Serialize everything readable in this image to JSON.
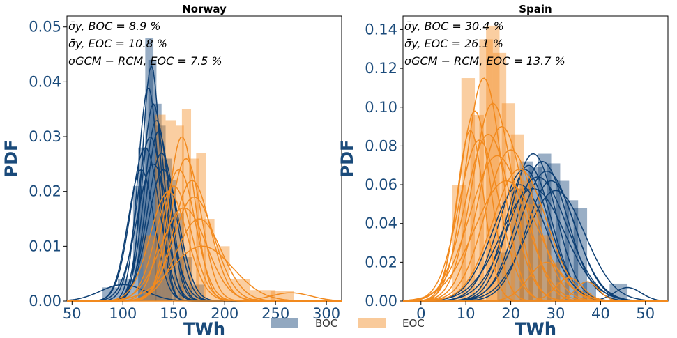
{
  "colors": {
    "boc": "#0d3f74",
    "eoc": "#f28a1e",
    "axis_text": "#1a4a7a"
  },
  "legend": {
    "items": [
      {
        "label": "BOC",
        "color": "#0d3f74"
      },
      {
        "label": "EOC",
        "color": "#f28a1e"
      }
    ]
  },
  "chart_data": [
    {
      "type": "histogram",
      "title": "Norway",
      "xlabel": "TWh",
      "ylabel": "PDF",
      "xlim": [
        45,
        315
      ],
      "ylim": [
        0,
        0.052
      ],
      "xticks": [
        50,
        100,
        150,
        200,
        250,
        300
      ],
      "yticks": [
        0.0,
        0.01,
        0.02,
        0.03,
        0.04,
        0.05
      ],
      "ytick_labels": [
        "0.00",
        "0.01",
        "0.02",
        "0.03",
        "0.04",
        "0.05"
      ],
      "annotations": [
        "σ̄y, BOC = 8.9 %",
        "σ̄y, EOC = 10.8 %",
        "σGCM − RCM, EOC = 7.5 %"
      ],
      "series": [
        {
          "name": "BOC",
          "bars": [
            [
              80,
              95,
              0.0025
            ],
            [
              95,
              110,
              0.004
            ],
            [
              110,
              122,
              0.021
            ],
            [
              115,
              125,
              0.028
            ],
            [
              122,
              130,
              0.048
            ],
            [
              125,
              133,
              0.044
            ],
            [
              130,
              138,
              0.036
            ],
            [
              132,
              142,
              0.032
            ],
            [
              138,
              148,
              0.026
            ],
            [
              142,
              152,
              0.022
            ],
            [
              150,
              160,
              0.016
            ],
            [
              155,
              168,
              0.008
            ],
            [
              165,
              180,
              0.003
            ]
          ],
          "curves": [
            {
              "mean": 128,
              "sd": 9,
              "peak": 0.043
            },
            {
              "mean": 125,
              "sd": 10,
              "peak": 0.039
            },
            {
              "mean": 130,
              "sd": 11,
              "peak": 0.036
            },
            {
              "mean": 133,
              "sd": 12,
              "peak": 0.033
            },
            {
              "mean": 127,
              "sd": 13,
              "peak": 0.03
            },
            {
              "mean": 135,
              "sd": 12,
              "peak": 0.031
            },
            {
              "mean": 122,
              "sd": 14,
              "peak": 0.028
            },
            {
              "mean": 138,
              "sd": 14,
              "peak": 0.027
            },
            {
              "mean": 130,
              "sd": 16,
              "peak": 0.025
            },
            {
              "mean": 118,
              "sd": 13,
              "peak": 0.024
            },
            {
              "mean": 140,
              "sd": 15,
              "peak": 0.024
            },
            {
              "mean": 100,
              "sd": 22,
              "peak": 0.003
            }
          ]
        },
        {
          "name": "EOC",
          "bars": [
            [
              120,
              132,
              0.012
            ],
            [
              132,
              142,
              0.034
            ],
            [
              142,
              152,
              0.033
            ],
            [
              152,
              160,
              0.032
            ],
            [
              158,
              167,
              0.035
            ],
            [
              165,
              175,
              0.026
            ],
            [
              172,
              182,
              0.027
            ],
            [
              180,
              190,
              0.015
            ],
            [
              190,
              205,
              0.01
            ],
            [
              205,
              225,
              0.004
            ],
            [
              225,
              250,
              0.002
            ],
            [
              245,
              268,
              0.0018
            ]
          ],
          "curves": [
            {
              "mean": 158,
              "sd": 13,
              "peak": 0.03
            },
            {
              "mean": 162,
              "sd": 15,
              "peak": 0.026
            },
            {
              "mean": 155,
              "sd": 16,
              "peak": 0.024
            },
            {
              "mean": 168,
              "sd": 18,
              "peak": 0.022
            },
            {
              "mean": 150,
              "sd": 17,
              "peak": 0.021
            },
            {
              "mean": 170,
              "sd": 20,
              "peak": 0.019
            },
            {
              "mean": 160,
              "sd": 22,
              "peak": 0.017
            },
            {
              "mean": 175,
              "sd": 22,
              "peak": 0.015
            },
            {
              "mean": 145,
              "sd": 18,
              "peak": 0.02
            },
            {
              "mean": 178,
              "sd": 30,
              "peak": 0.01
            },
            {
              "mean": 265,
              "sd": 20,
              "peak": 0.0015
            }
          ]
        }
      ]
    },
    {
      "type": "histogram",
      "title": "Spain",
      "xlabel": "TWh",
      "ylabel": "PDF",
      "xlim": [
        -4,
        55
      ],
      "ylim": [
        0,
        0.147
      ],
      "xticks": [
        0,
        10,
        20,
        30,
        40,
        50
      ],
      "yticks": [
        0.0,
        0.02,
        0.04,
        0.06,
        0.08,
        0.1,
        0.12,
        0.14
      ],
      "ytick_labels": [
        "0.00",
        "0.02",
        "0.04",
        "0.06",
        "0.08",
        "0.10",
        "0.12",
        "0.14"
      ],
      "annotations": [
        "σ̄y, BOC = 30.4 %",
        "σ̄y, EOC = 26.1 %",
        "σGCM − RCM, EOC = 13.7 %"
      ],
      "series": [
        {
          "name": "BOC",
          "bars": [
            [
              17,
              20,
              0.025
            ],
            [
              20,
              23,
              0.058
            ],
            [
              22,
              25,
              0.072
            ],
            [
              24,
              27,
              0.069
            ],
            [
              26,
              29,
              0.076
            ],
            [
              28,
              31,
              0.071
            ],
            [
              30,
              33,
              0.062
            ],
            [
              32,
              35,
              0.052
            ],
            [
              34,
              37,
              0.048
            ],
            [
              36,
              39,
              0.01
            ],
            [
              42,
              46,
              0.009
            ]
          ],
          "curves": [
            {
              "mean": 25,
              "sd": 5,
              "peak": 0.076
            },
            {
              "mean": 27,
              "sd": 5.5,
              "peak": 0.072
            },
            {
              "mean": 24,
              "sd": 5,
              "peak": 0.07
            },
            {
              "mean": 28,
              "sd": 6,
              "peak": 0.067
            },
            {
              "mean": 26,
              "sd": 6.5,
              "peak": 0.064
            },
            {
              "mean": 23,
              "sd": 5.5,
              "peak": 0.068
            },
            {
              "mean": 29,
              "sd": 5.5,
              "peak": 0.062
            },
            {
              "mean": 25,
              "sd": 7,
              "peak": 0.058
            },
            {
              "mean": 30,
              "sd": 6.5,
              "peak": 0.057
            },
            {
              "mean": 22,
              "sd": 6,
              "peak": 0.06
            },
            {
              "mean": 46,
              "sd": 3,
              "peak": 0.007
            }
          ]
        },
        {
          "name": "EOC",
          "bars": [
            [
              7,
              10,
              0.06
            ],
            [
              9,
              12,
              0.115
            ],
            [
              11,
              14,
              0.096
            ],
            [
              13,
              16,
              0.135
            ],
            [
              14.5,
              17.5,
              0.142
            ],
            [
              16,
              19,
              0.128
            ],
            [
              18,
              21,
              0.102
            ],
            [
              20,
              23,
              0.086
            ],
            [
              22,
              25,
              0.062
            ],
            [
              24,
              27,
              0.05
            ],
            [
              26,
              29,
              0.034
            ],
            [
              28,
              31,
              0.02
            ],
            [
              30,
              33,
              0.01
            ],
            [
              34,
              38,
              0.004
            ]
          ],
          "curves": [
            {
              "mean": 14,
              "sd": 4,
              "peak": 0.115
            },
            {
              "mean": 16,
              "sd": 4.5,
              "peak": 0.102
            },
            {
              "mean": 12,
              "sd": 3.5,
              "peak": 0.098
            },
            {
              "mean": 18,
              "sd": 5,
              "peak": 0.09
            },
            {
              "mean": 15,
              "sd": 5,
              "peak": 0.086
            },
            {
              "mean": 20,
              "sd": 5.5,
              "peak": 0.078
            },
            {
              "mean": 13,
              "sd": 4.5,
              "peak": 0.083
            },
            {
              "mean": 17,
              "sd": 6,
              "peak": 0.075
            },
            {
              "mean": 22,
              "sd": 6,
              "peak": 0.068
            },
            {
              "mean": 19,
              "sd": 7,
              "peak": 0.062
            },
            {
              "mean": 11,
              "sd": 3,
              "peak": 0.088
            },
            {
              "mean": 28,
              "sd": 4,
              "peak": 0.02
            },
            {
              "mean": 33,
              "sd": 3,
              "peak": 0.012
            },
            {
              "mean": 37,
              "sd": 2.5,
              "peak": 0.01
            }
          ]
        }
      ]
    }
  ]
}
